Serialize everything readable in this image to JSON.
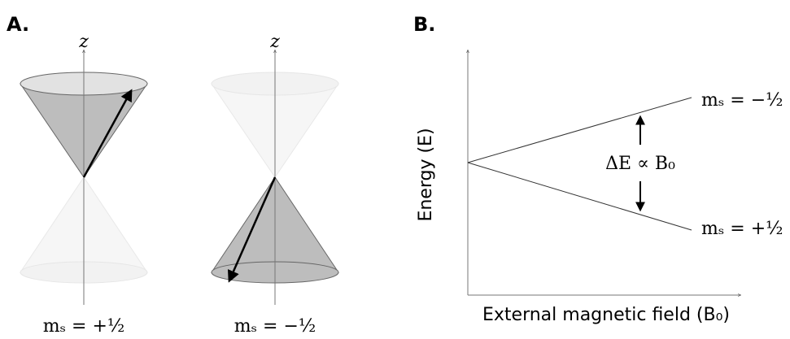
{
  "panel_a": {
    "label": "A.",
    "cones": [
      {
        "axis_label": "z",
        "caption": "mₛ = +½"
      },
      {
        "axis_label": "z",
        "caption": "mₛ = −½"
      }
    ]
  },
  "panel_b": {
    "label": "B.",
    "y_axis_label": "Energy (E)",
    "x_axis_label": "External magnetic field (B₀)",
    "gap_label": "ΔE ∝ B₀",
    "upper_level": "mₛ = −½",
    "lower_level": "mₛ = +½"
  }
}
